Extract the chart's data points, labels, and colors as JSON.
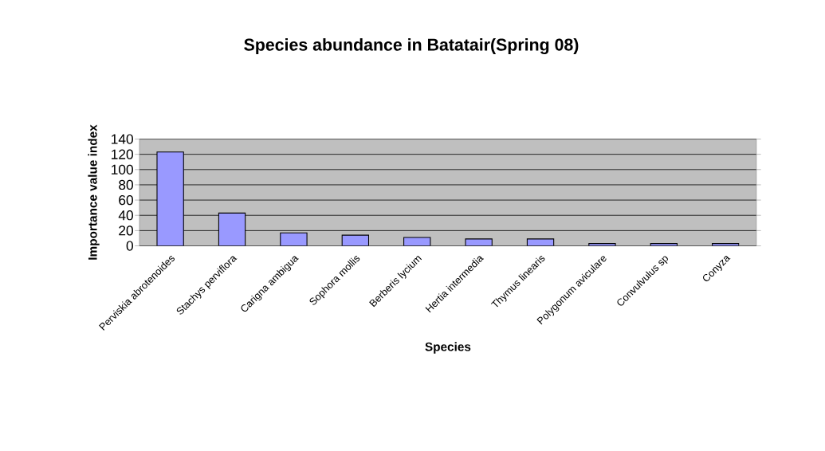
{
  "chart_data": {
    "type": "bar",
    "title": "Species abundance in Batatair(Spring 08)",
    "xlabel": "Species",
    "ylabel": "Importance value index",
    "categories": [
      "Perviskia abrotenoides",
      "Stachys perviflora",
      "Carigna ambigua",
      "Sophora mollis",
      "Berberis lycium",
      "Hertia intermedia",
      "Thymus linearis",
      "Polygonum aviculare",
      "Convulvulus sp",
      "Conyza"
    ],
    "values": [
      123,
      43,
      17,
      14,
      11,
      9,
      9,
      3,
      3,
      3
    ],
    "color": "#9999ff",
    "ylim": [
      0,
      140
    ],
    "yticks": [
      0,
      20,
      40,
      60,
      80,
      100,
      120,
      140
    ],
    "grid": "y"
  }
}
